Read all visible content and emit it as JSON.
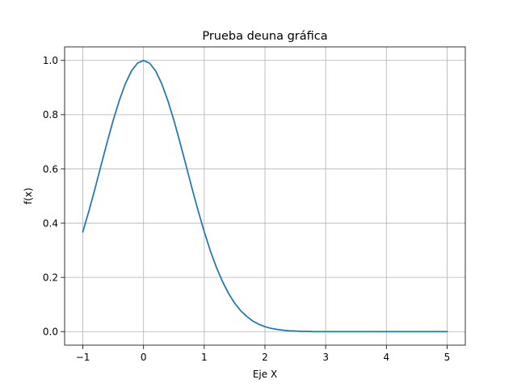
{
  "chart_data": {
    "type": "line",
    "title": "Prueba deuna gráfica",
    "xlabel": "Eje X",
    "ylabel": "f(x)",
    "xlim": [
      -1.3,
      5.3
    ],
    "ylim": [
      -0.05,
      1.05
    ],
    "grid": true,
    "x_ticks": [
      -1,
      0,
      1,
      2,
      3,
      4,
      5
    ],
    "x_tick_labels": [
      "−1",
      "0",
      "1",
      "2",
      "3",
      "4",
      "5"
    ],
    "y_ticks": [
      0.0,
      0.2,
      0.4,
      0.6,
      0.8,
      1.0
    ],
    "y_tick_labels": [
      "0.0",
      "0.2",
      "0.4",
      "0.6",
      "0.8",
      "1.0"
    ],
    "series": [
      {
        "color": "#1f77b4",
        "x": [
          -1.0,
          -0.9,
          -0.8,
          -0.7,
          -0.6,
          -0.5,
          -0.4,
          -0.3,
          -0.2,
          -0.1,
          0.0,
          0.1,
          0.2,
          0.3,
          0.4,
          0.5,
          0.6,
          0.7,
          0.8,
          0.9,
          1.0,
          1.1,
          1.2,
          1.3,
          1.4,
          1.5,
          1.6,
          1.7,
          1.8,
          1.9,
          2.0,
          2.1,
          2.2,
          2.3,
          2.4,
          2.5,
          2.6,
          2.7,
          2.8,
          2.9,
          3.0,
          3.1,
          3.2,
          3.3,
          3.4,
          3.5,
          3.6,
          3.7,
          3.8,
          3.9,
          4.0,
          4.1,
          4.2,
          4.3,
          4.4,
          4.5,
          4.6,
          4.7,
          4.8,
          4.9,
          5.0
        ],
        "y": [
          0.368,
          0.445,
          0.527,
          0.613,
          0.698,
          0.779,
          0.852,
          0.914,
          0.961,
          0.99,
          1.0,
          0.99,
          0.961,
          0.914,
          0.852,
          0.779,
          0.698,
          0.613,
          0.527,
          0.445,
          0.368,
          0.298,
          0.237,
          0.185,
          0.141,
          0.105,
          0.077,
          0.056,
          0.039,
          0.027,
          0.018,
          0.012,
          0.008,
          0.005,
          0.003,
          0.002,
          0.001,
          0.001,
          0.0,
          0.0,
          0.0,
          0.0,
          0.0,
          0.0,
          0.0,
          0.0,
          0.0,
          0.0,
          0.0,
          0.0,
          0.0,
          0.0,
          0.0,
          0.0,
          0.0,
          0.0,
          0.0,
          0.0,
          0.0,
          0.0,
          0.0
        ]
      }
    ]
  }
}
